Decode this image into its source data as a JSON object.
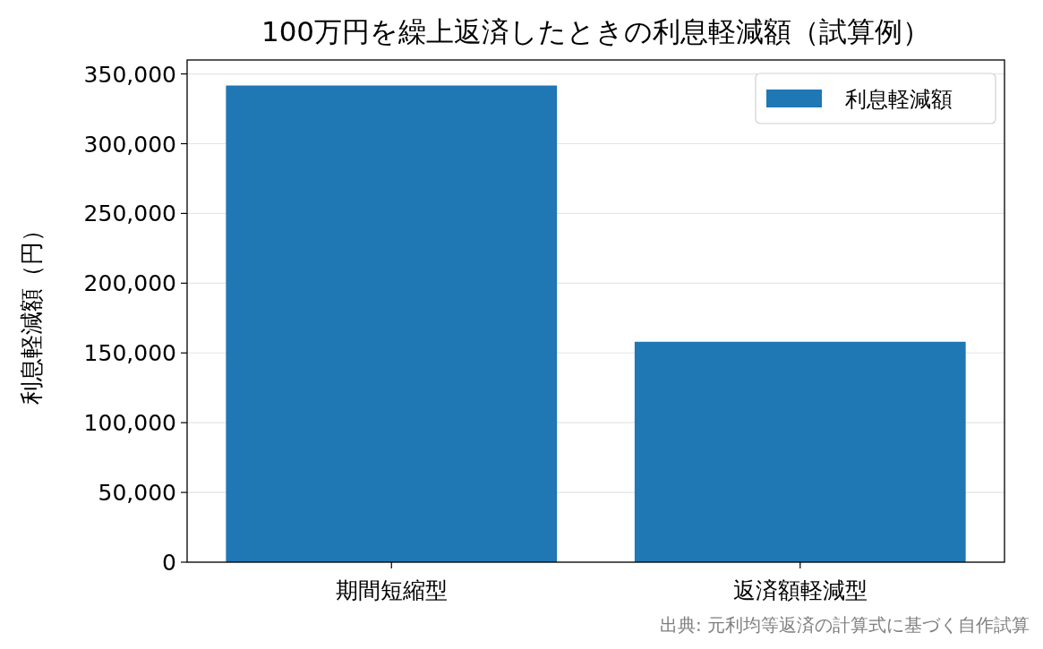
{
  "chart_data": {
    "type": "bar",
    "title": "100万円を繰上返済したときの利息軽減額（試算例）",
    "ylabel": "利息軽減額（円）",
    "categories": [
      "期間短縮型",
      "返済額軽減型"
    ],
    "series": [
      {
        "name": "利息軽減額",
        "color": "#1f77b4",
        "values": [
          341700,
          158000
        ]
      }
    ],
    "ylim": [
      0,
      360000
    ],
    "yticks": [
      {
        "value": 0,
        "label": "0"
      },
      {
        "value": 50000,
        "label": "50,000"
      },
      {
        "value": 100000,
        "label": "100,000"
      },
      {
        "value": 150000,
        "label": "150,000"
      },
      {
        "value": 200000,
        "label": "200,000"
      },
      {
        "value": 250000,
        "label": "250,000"
      },
      {
        "value": 300000,
        "label": "300,000"
      },
      {
        "value": 350000,
        "label": "350,000"
      }
    ],
    "grid": "y",
    "legend": "top right",
    "annotations": [
      "出典: 元利均等返済の計算式に基づく自作試算"
    ]
  }
}
